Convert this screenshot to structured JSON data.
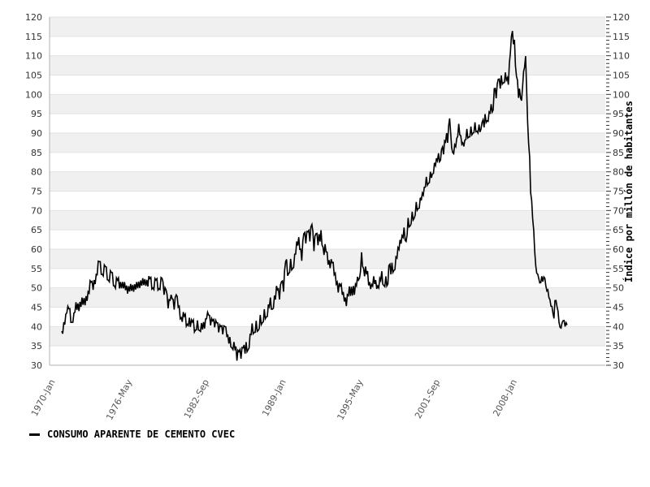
{
  "chart_data": {
    "type": "line",
    "ylabel_right": "Índice por millón de habitantes",
    "ylim": [
      30,
      120
    ],
    "ytick_step": 5,
    "ytick_minor_step": 1,
    "grid": "alternating horizontal gray bands every 5 units, gridline at each multiple of 5",
    "legend_position": "bottom-left",
    "x_axis": {
      "unit": "month",
      "start": "1970-Jan",
      "tick_labels": [
        "1970-Jan",
        "1976-May",
        "1982-Sep",
        "1989-Jan",
        "1995-May",
        "2001-Sep",
        "2008-Jan"
      ],
      "months_between_ticks": 76,
      "total_months": 500
    },
    "series": [
      {
        "name": "CONSUMO APARENTE DE CEMENTO CVEC",
        "color": "#000000",
        "anchors_month_value": [
          [
            0,
            38.8
          ],
          [
            3,
            40.5
          ],
          [
            5,
            43.5
          ],
          [
            7,
            44.6
          ],
          [
            10,
            41.1
          ],
          [
            12,
            43.5
          ],
          [
            14,
            46.3
          ],
          [
            17,
            44.0
          ],
          [
            20,
            47.5
          ],
          [
            23,
            45.5
          ],
          [
            26,
            49.0
          ],
          [
            29,
            51.5
          ],
          [
            31,
            49.5
          ],
          [
            34,
            53.5
          ],
          [
            37,
            56.8
          ],
          [
            40,
            53.5
          ],
          [
            43,
            55.5
          ],
          [
            46,
            52.0
          ],
          [
            49,
            54.0
          ],
          [
            52,
            50.5
          ],
          [
            55,
            52.0
          ],
          [
            59,
            49.9
          ],
          [
            62,
            51.5
          ],
          [
            65,
            48.5
          ],
          [
            68,
            51.0
          ],
          [
            71,
            49.0
          ],
          [
            74,
            51.5
          ],
          [
            77,
            50.0
          ],
          [
            80,
            52.5
          ],
          [
            83,
            50.5
          ],
          [
            87,
            52.4
          ],
          [
            90,
            50.0
          ],
          [
            93,
            52.0
          ],
          [
            96,
            49.8
          ],
          [
            99,
            52.5
          ],
          [
            101,
            48.2
          ],
          [
            103,
            49.5
          ],
          [
            105,
            44.7
          ],
          [
            107,
            46.8
          ],
          [
            109,
            47.2
          ],
          [
            111,
            44.4
          ],
          [
            113,
            48.2
          ],
          [
            115,
            45.0
          ],
          [
            118,
            42.3
          ],
          [
            121,
            42.7
          ],
          [
            124,
            40.6
          ],
          [
            126,
            42.3
          ],
          [
            127,
            39.9
          ],
          [
            129,
            41.2
          ],
          [
            132,
            39.1
          ],
          [
            134,
            41.6
          ],
          [
            136,
            39.0
          ],
          [
            138,
            40.9
          ],
          [
            141,
            39.5
          ],
          [
            143,
            42.0
          ],
          [
            145,
            43.0
          ],
          [
            147,
            40.3
          ],
          [
            149,
            41.5
          ],
          [
            151,
            39.8
          ],
          [
            153,
            41.0
          ],
          [
            155,
            38.5
          ],
          [
            157,
            40.0
          ],
          [
            159,
            38.0
          ],
          [
            161,
            40.0
          ],
          [
            163,
            37.5
          ],
          [
            165,
            35.6
          ],
          [
            166,
            37.3
          ],
          [
            168,
            34.5
          ],
          [
            170,
            36.0
          ],
          [
            172,
            34.8
          ],
          [
            173,
            31.2
          ],
          [
            175,
            33.5
          ],
          [
            177,
            31.7
          ],
          [
            179,
            34.5
          ],
          [
            181,
            33.0
          ],
          [
            182,
            36.0
          ],
          [
            184,
            34.0
          ],
          [
            186,
            38.0
          ],
          [
            188,
            40.8
          ],
          [
            190,
            38.5
          ],
          [
            192,
            41.5
          ],
          [
            194,
            39.0
          ],
          [
            196,
            43.0
          ],
          [
            198,
            41.0
          ],
          [
            200,
            44.5
          ],
          [
            202,
            42.5
          ],
          [
            204,
            45.7
          ],
          [
            206,
            47.5
          ],
          [
            208,
            44.5
          ],
          [
            210,
            48.0
          ],
          [
            213,
            49.5
          ],
          [
            215,
            47.0
          ],
          [
            217,
            51.6
          ],
          [
            219,
            49.0
          ],
          [
            221,
            56.8
          ],
          [
            224,
            53.7
          ],
          [
            226,
            57.5
          ],
          [
            228,
            55.0
          ],
          [
            230,
            58.7
          ],
          [
            232,
            62.0
          ],
          [
            234,
            63.1
          ],
          [
            236,
            60.0
          ],
          [
            237,
            57.0
          ],
          [
            239,
            64.0
          ],
          [
            241,
            61.5
          ],
          [
            243,
            64.5
          ],
          [
            245,
            62.0
          ],
          [
            247,
            66.4
          ],
          [
            249,
            59.5
          ],
          [
            251,
            64.0
          ],
          [
            253,
            61.0
          ],
          [
            256,
            64.9
          ],
          [
            258,
            60.5
          ],
          [
            261,
            59.3
          ],
          [
            263,
            56.0
          ],
          [
            265,
            55.1
          ],
          [
            267,
            56.5
          ],
          [
            269,
            53.4
          ],
          [
            271,
            51.0
          ],
          [
            273,
            48.8
          ],
          [
            275,
            50.5
          ],
          [
            277,
            48.2
          ],
          [
            279,
            46.5
          ],
          [
            281,
            45.3
          ],
          [
            283,
            48.0
          ],
          [
            286,
            50.3
          ],
          [
            289,
            48.2
          ],
          [
            291,
            50.5
          ],
          [
            293,
            52.0
          ],
          [
            294,
            52.5
          ],
          [
            296,
            59.2
          ],
          [
            298,
            55.0
          ],
          [
            301,
            53.5
          ],
          [
            304,
            51.5
          ],
          [
            306,
            50.9
          ],
          [
            308,
            53.0
          ],
          [
            310,
            52.0
          ],
          [
            312,
            50.5
          ],
          [
            314,
            52.5
          ],
          [
            316,
            54.3
          ],
          [
            318,
            50.6
          ],
          [
            320,
            53.0
          ],
          [
            322,
            51.0
          ],
          [
            323,
            55.8
          ],
          [
            325,
            53.5
          ],
          [
            326,
            56.5
          ],
          [
            328,
            54.5
          ],
          [
            330,
            58.0
          ],
          [
            332,
            60.4
          ],
          [
            334,
            62.4
          ],
          [
            336,
            63.5
          ],
          [
            338,
            65.6
          ],
          [
            340,
            62.0
          ],
          [
            342,
            68.1
          ],
          [
            344,
            66.0
          ],
          [
            346,
            69.7
          ],
          [
            348,
            68.0
          ],
          [
            350,
            72.2
          ],
          [
            352,
            70.5
          ],
          [
            354,
            73.3
          ],
          [
            356,
            74.5
          ],
          [
            358,
            76.0
          ],
          [
            360,
            78.7
          ],
          [
            362,
            77.0
          ],
          [
            364,
            80.0
          ],
          [
            366,
            79.5
          ],
          [
            368,
            82.3
          ],
          [
            370,
            83.5
          ],
          [
            372,
            84.8
          ],
          [
            374,
            83.0
          ],
          [
            375,
            85.8
          ],
          [
            377,
            84.5
          ],
          [
            378,
            88.0
          ],
          [
            380,
            90.0
          ],
          [
            381,
            87.5
          ],
          [
            383,
            93.8
          ],
          [
            384,
            90.0
          ],
          [
            386,
            85.0
          ],
          [
            388,
            87.0
          ],
          [
            390,
            88.6
          ],
          [
            392,
            92.4
          ],
          [
            394,
            89.3
          ],
          [
            396,
            87.5
          ],
          [
            398,
            88.2
          ],
          [
            400,
            91.1
          ],
          [
            402,
            89.0
          ],
          [
            404,
            91.7
          ],
          [
            406,
            90.0
          ],
          [
            408,
            92.8
          ],
          [
            410,
            90.5
          ],
          [
            412,
            92.2
          ],
          [
            414,
            91.0
          ],
          [
            415,
            92.8
          ],
          [
            417,
            91.5
          ],
          [
            418,
            94.9
          ],
          [
            420,
            93.2
          ],
          [
            422,
            95.5
          ],
          [
            424,
            97.5
          ],
          [
            426,
            96.0
          ],
          [
            427,
            101.5
          ],
          [
            429,
            99.0
          ],
          [
            431,
            103.9
          ],
          [
            433,
            101.5
          ],
          [
            434,
            104.9
          ],
          [
            436,
            103.0
          ],
          [
            438,
            105.7
          ],
          [
            440,
            104.3
          ],
          [
            441,
            102.5
          ],
          [
            443,
            110.9
          ],
          [
            445,
            116.4
          ],
          [
            446,
            113.0
          ],
          [
            447,
            114.1
          ],
          [
            448,
            107.4
          ],
          [
            450,
            103.7
          ],
          [
            451,
            99.1
          ],
          [
            452,
            101.5
          ],
          [
            454,
            98.4
          ],
          [
            455,
            102.0
          ],
          [
            456,
            105.9
          ],
          [
            458,
            109.9
          ],
          [
            459,
            101.8
          ],
          [
            460,
            92.8
          ],
          [
            462,
            83.8
          ],
          [
            463,
            74.6
          ],
          [
            464,
            72.5
          ],
          [
            466,
            64.9
          ],
          [
            468,
            55.7
          ],
          [
            470,
            53.5
          ],
          [
            471,
            52.4
          ],
          [
            472,
            51.3
          ],
          [
            474,
            53.0
          ],
          [
            475,
            51.6
          ],
          [
            477,
            52.5
          ],
          [
            478,
            50.5
          ],
          [
            480,
            49.5
          ],
          [
            482,
            47.0
          ],
          [
            483,
            45.3
          ],
          [
            485,
            43.5
          ],
          [
            486,
            42.1
          ],
          [
            487,
            46.7
          ],
          [
            489,
            45.2
          ],
          [
            490,
            44.0
          ],
          [
            492,
            39.8
          ],
          [
            494,
            41.0
          ],
          [
            495,
            41.5
          ],
          [
            497,
            40.0
          ],
          [
            499,
            40.4
          ]
        ],
        "monthly_jitter": [
          {
            "to": 37,
            "amp": 1.2
          },
          {
            "to": 99,
            "amp": 1.1
          },
          {
            "to": 173,
            "amp": 1.2
          },
          {
            "to": 221,
            "amp": 1.5
          },
          {
            "to": 296,
            "amp": 1.6
          },
          {
            "to": 340,
            "amp": 1.5
          },
          {
            "to": 445,
            "amp": 1.3
          },
          {
            "to": 465,
            "amp": 0.9
          },
          {
            "to": 499,
            "amp": 0.8
          }
        ]
      }
    ],
    "colors": {
      "line": "#000000",
      "band": "#f0f0f0",
      "grid": "#e2e2e2",
      "axis": "#b0b0b0",
      "tick": "#333333",
      "y_label": "#333333",
      "x_label": "#555555"
    }
  },
  "legend": {
    "label": "CONSUMO APARENTE DE CEMENTO CVEC"
  }
}
